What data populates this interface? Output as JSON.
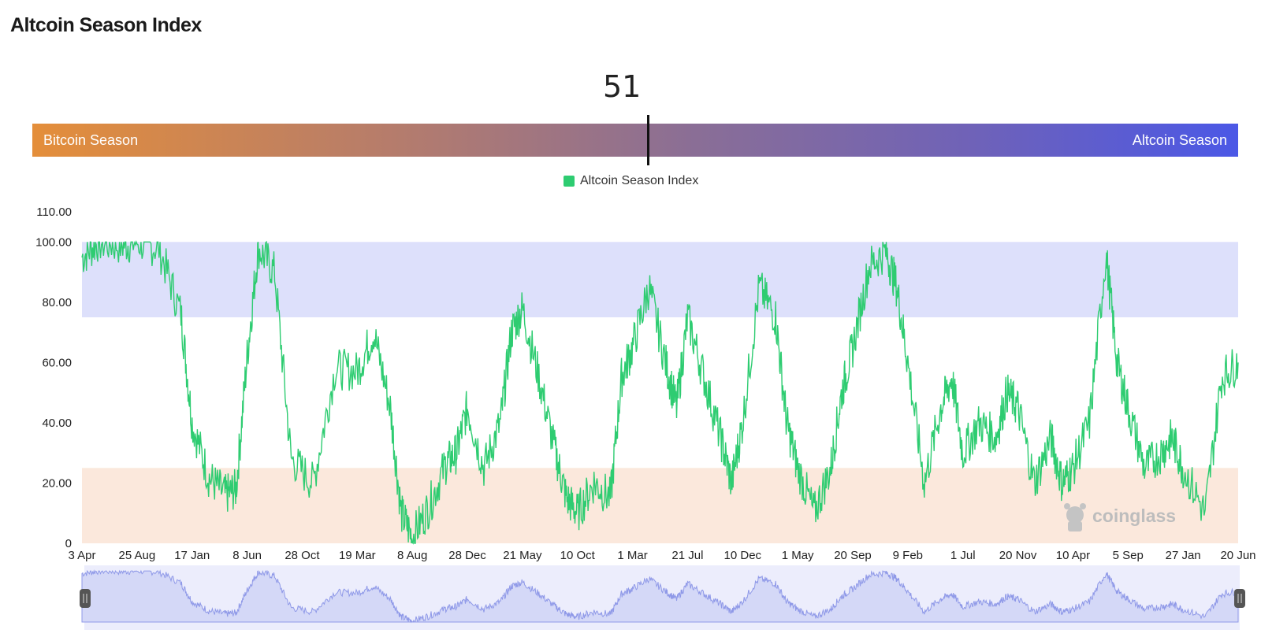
{
  "title": "Altcoin Season Index",
  "gauge": {
    "value": "51",
    "left_label": "Bitcoin Season",
    "right_label": "Altcoin Season"
  },
  "legend": {
    "label": "Altcoin Season Index",
    "color": "#2ecc71"
  },
  "watermark": "coinglass",
  "chart_data": {
    "type": "line",
    "title": "",
    "xlabel": "",
    "ylabel": "",
    "ylim": [
      0,
      110
    ],
    "y_ticks": [
      "0",
      "20.00",
      "40.00",
      "60.00",
      "80.00",
      "100.00",
      "110.00"
    ],
    "x_ticks": [
      "3 Apr",
      "25 Aug",
      "17 Jan",
      "8 Jun",
      "28 Oct",
      "19 Mar",
      "8 Aug",
      "28 Dec",
      "21 May",
      "10 Oct",
      "1 Mar",
      "21 Jul",
      "10 Dec",
      "1 May",
      "20 Sep",
      "9 Feb",
      "1 Jul",
      "20 Nov",
      "10 Apr",
      "5 Sep",
      "27 Jan",
      "20 Jun"
    ],
    "bands": [
      {
        "name": "Altcoin Season zone",
        "from": 75,
        "to": 100,
        "color": "#dde0fb"
      },
      {
        "name": "Bitcoin Season zone",
        "from": 0,
        "to": 25,
        "color": "#fbe8dc"
      }
    ],
    "grid": false,
    "legend_position": "top-center",
    "series": [
      {
        "name": "Altcoin Season Index",
        "color": "#2ecc71",
        "x": [
          0,
          0.3,
          0.7,
          1,
          1.4,
          1.8,
          2,
          2.3,
          2.6,
          2.8,
          3,
          3.2,
          3.5,
          3.8,
          4.2,
          4.6,
          5,
          5.3,
          5.6,
          5.8,
          6,
          6.3,
          6.6,
          6.8,
          7,
          7.3,
          7.6,
          7.8,
          8,
          8.3,
          8.6,
          8.8,
          9,
          9.3,
          9.6,
          9.8,
          10,
          10.3,
          10.6,
          10.8,
          11,
          11.3,
          11.6,
          11.8,
          12,
          12.3,
          12.6,
          12.8,
          13,
          13.3,
          13.6,
          13.8,
          14,
          14.3,
          14.6,
          14.8,
          15,
          15.3,
          15.6,
          15.8,
          16,
          16.3,
          16.6,
          16.8,
          17,
          17.3,
          17.6,
          17.8,
          18,
          18.3,
          18.6,
          18.8,
          19,
          19.3,
          19.6,
          19.8,
          20,
          20.4,
          20.7,
          21
        ],
        "values": [
          95,
          100,
          99,
          100,
          98,
          76,
          40,
          22,
          16,
          18,
          62,
          98,
          90,
          28,
          20,
          58,
          57,
          70,
          45,
          10,
          2,
          12,
          26,
          30,
          45,
          25,
          40,
          70,
          78,
          55,
          30,
          15,
          10,
          20,
          15,
          55,
          65,
          85,
          60,
          45,
          75,
          55,
          35,
          20,
          40,
          85,
          75,
          40,
          25,
          10,
          25,
          50,
          65,
          92,
          97,
          85,
          60,
          20,
          45,
          55,
          30,
          40,
          35,
          50,
          45,
          20,
          35,
          20,
          25,
          40,
          96,
          60,
          45,
          25,
          30,
          35,
          25,
          10,
          55,
          60
        ]
      }
    ]
  }
}
